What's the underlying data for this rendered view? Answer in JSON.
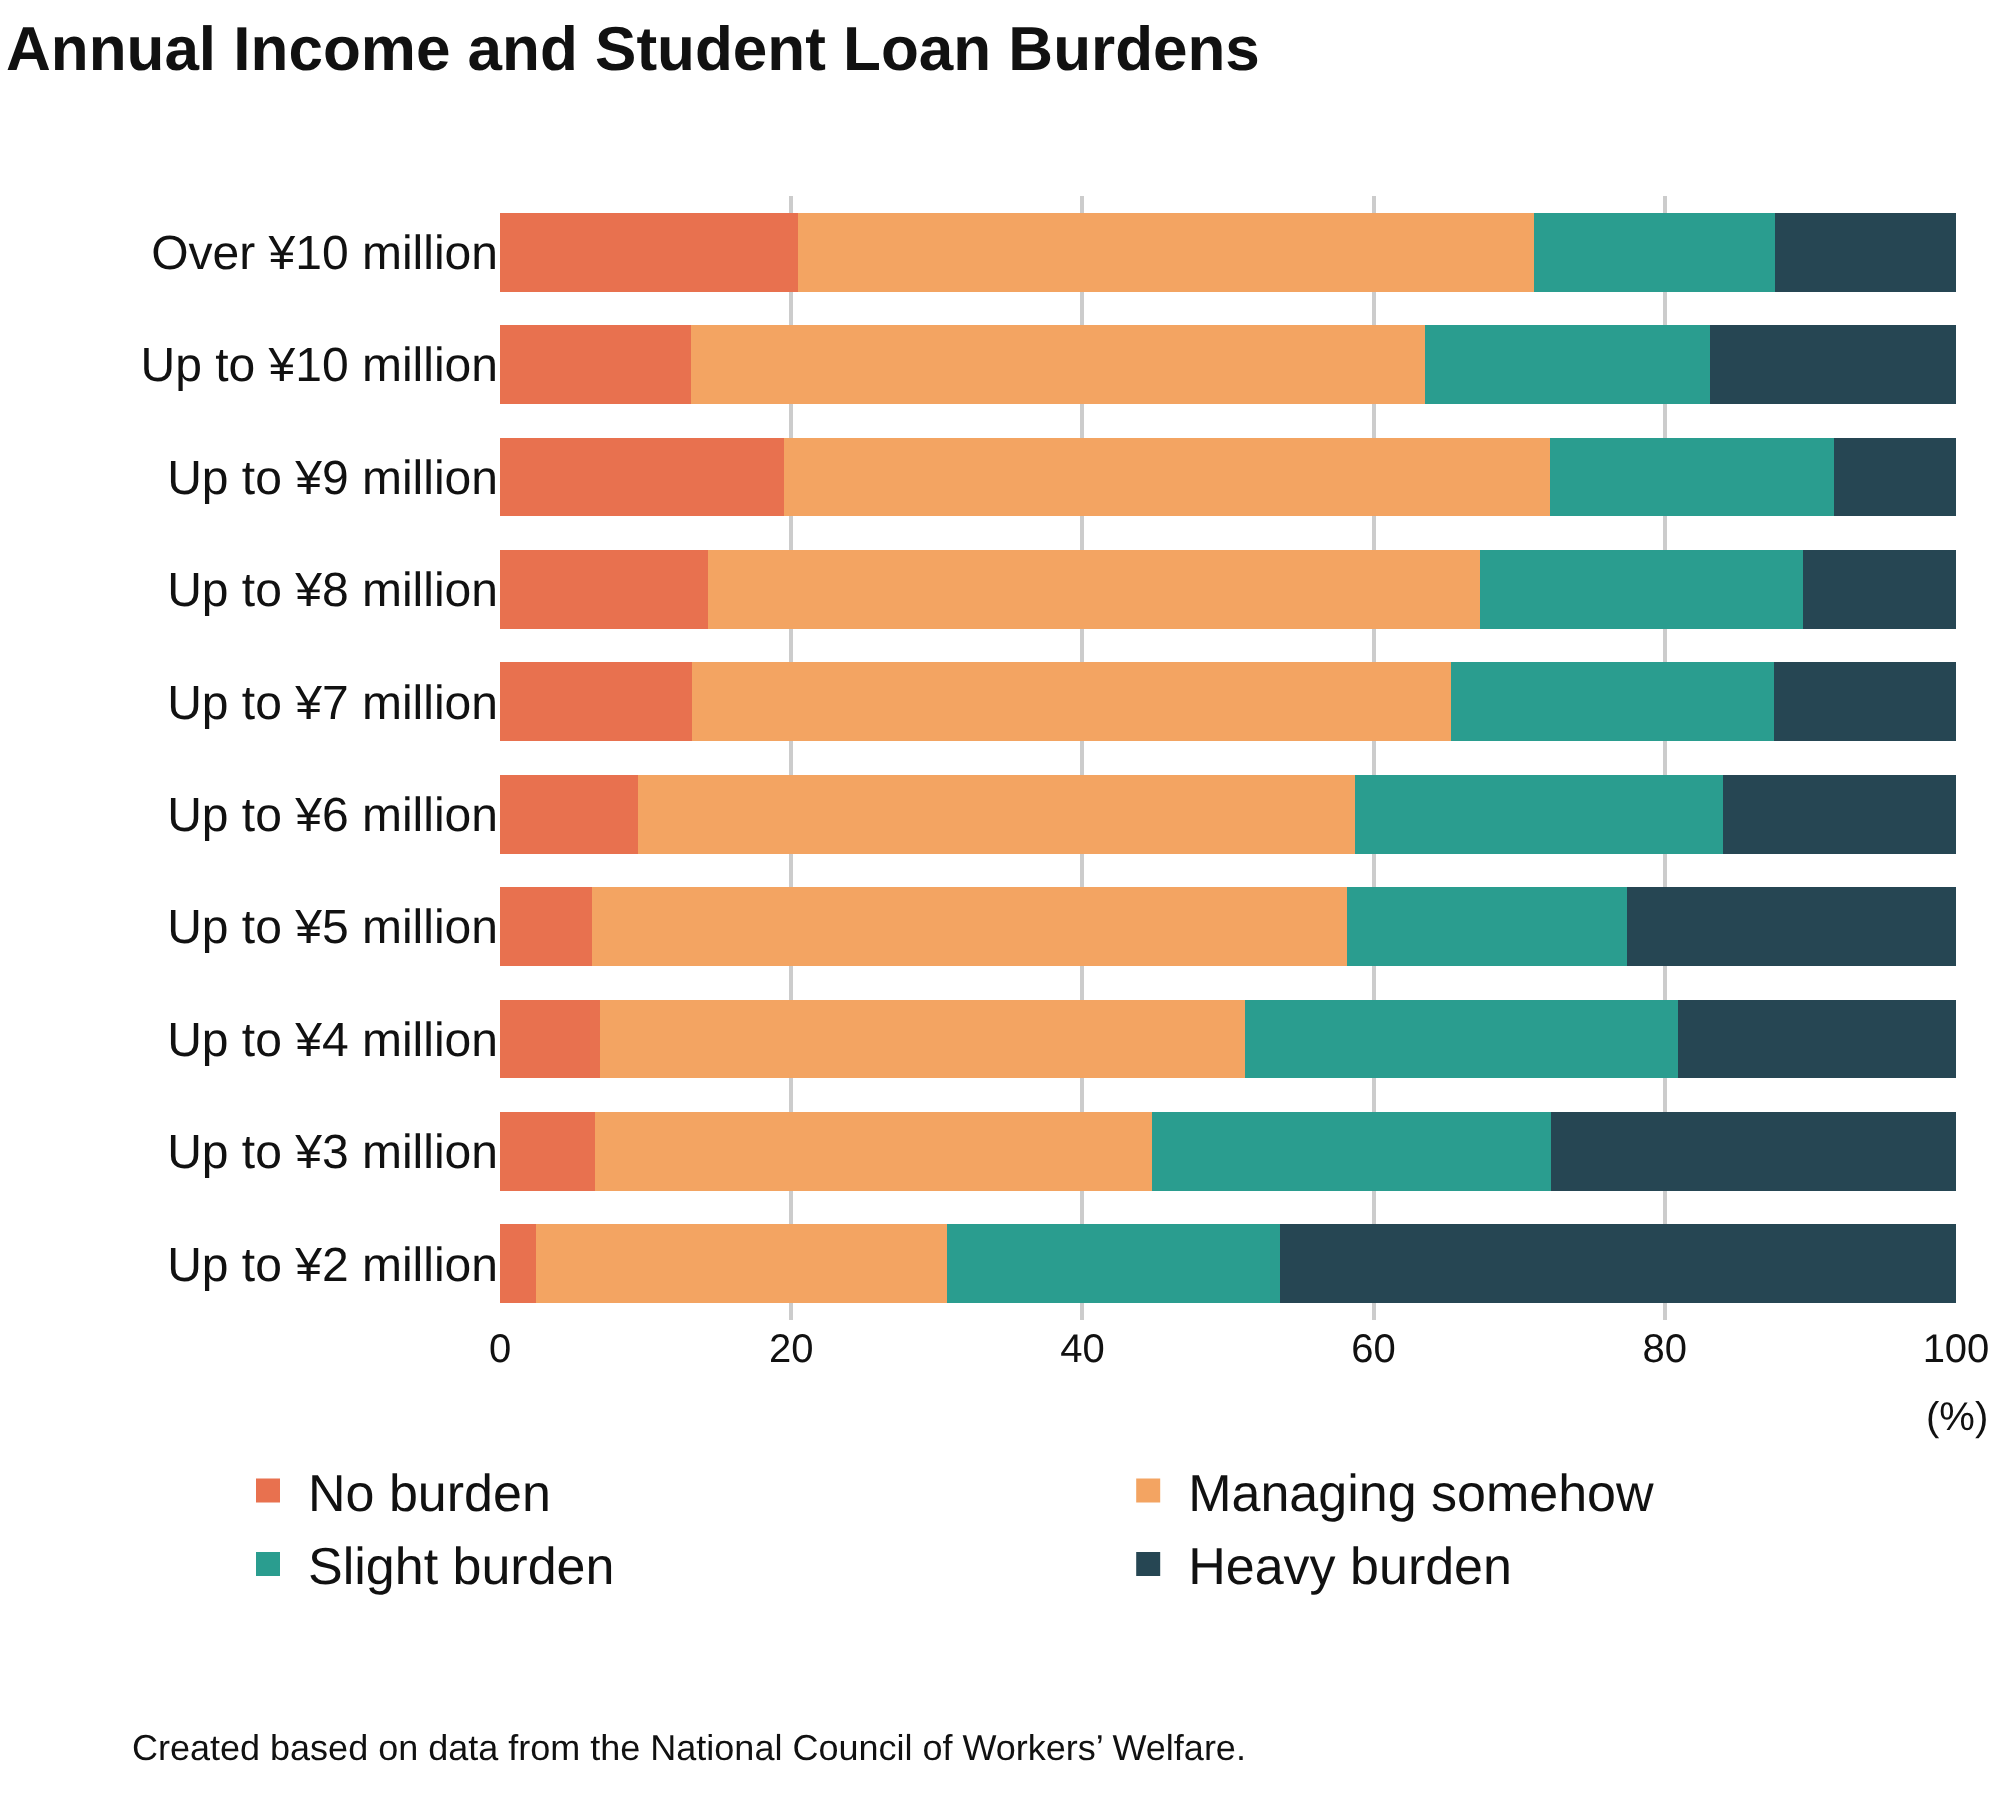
{
  "chart_data": {
    "type": "bar",
    "orientation": "horizontal",
    "stacked": true,
    "title": "Annual Income and Student Loan Burdens",
    "xlabel": "(%)",
    "categories": [
      "Over ¥10 million",
      "Up to ¥10 million",
      "Up to ¥9 million",
      "Up to ¥8 million",
      "Up to ¥7 million",
      "Up to ¥6 million",
      "Up to ¥5 million",
      "Up to ¥4 million",
      "Up to ¥3 million",
      "Up to ¥2 million"
    ],
    "series": [
      {
        "name": "No burden",
        "color": "#e8714f",
        "values": [
          20.5,
          13.1,
          19.5,
          14.3,
          13.2,
          9.5,
          6.3,
          6.9,
          6.5,
          2.5
        ]
      },
      {
        "name": "Managing somehow",
        "color": "#f3a462",
        "values": [
          50.5,
          50.4,
          52.6,
          53.0,
          52.1,
          49.2,
          51.9,
          44.3,
          38.3,
          28.2
        ]
      },
      {
        "name": "Slight burden",
        "color": "#2a9d8f",
        "values": [
          16.6,
          19.6,
          19.5,
          22.2,
          22.2,
          25.3,
          19.2,
          29.7,
          27.4,
          22.9
        ]
      },
      {
        "name": "Heavy burden",
        "color": "#264653",
        "values": [
          12.4,
          16.9,
          8.4,
          10.5,
          12.5,
          16.0,
          22.6,
          19.1,
          27.8,
          46.4
        ]
      }
    ],
    "xlim": [
      0,
      100
    ],
    "xticks": [
      0,
      20,
      40,
      60,
      80,
      100
    ],
    "grid": "x",
    "legend": "bottom",
    "annotations": [
      "Created based on data from the National Council of Workers’ Welfare."
    ]
  }
}
